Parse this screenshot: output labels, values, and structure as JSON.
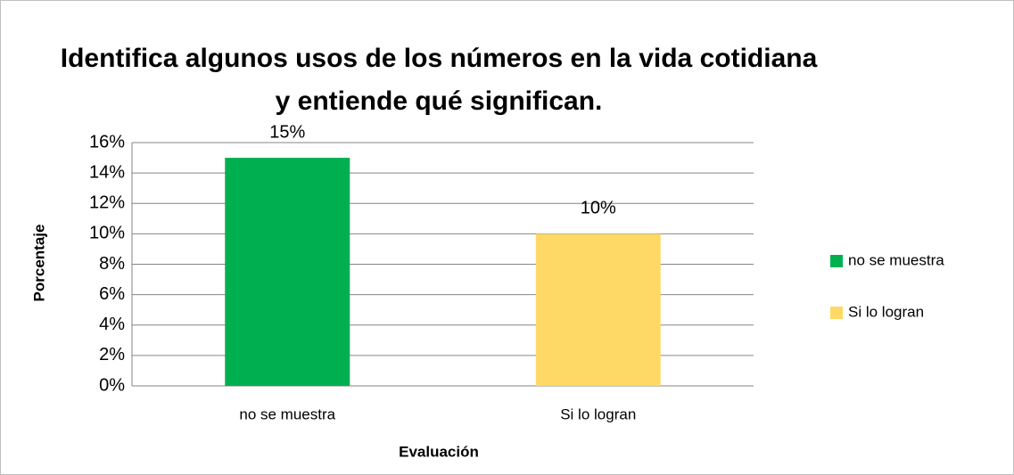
{
  "chart_data": {
    "type": "bar",
    "title": "Identifica algunos usos de los números en la vida cotidiana y entiende qué significan.",
    "x_label": "Evaluación",
    "y_label": "Porcentaje",
    "categories": [
      "no se muestra",
      "Si lo logran"
    ],
    "values": [
      15,
      10
    ],
    "value_labels": [
      "15%",
      "10%"
    ],
    "colors": [
      "#00b050",
      "#ffd966"
    ],
    "ylim": [
      0,
      16
    ],
    "yticks": [
      {
        "value": 0,
        "label": "0%"
      },
      {
        "value": 2,
        "label": "2%"
      },
      {
        "value": 4,
        "label": "4%"
      },
      {
        "value": 6,
        "label": "6%"
      },
      {
        "value": 8,
        "label": "8%"
      },
      {
        "value": 10,
        "label": "10%"
      },
      {
        "value": 12,
        "label": "12%"
      },
      {
        "value": 14,
        "label": "14%"
      },
      {
        "value": 16,
        "label": "16%"
      }
    ],
    "grid": true,
    "legend": "right"
  }
}
